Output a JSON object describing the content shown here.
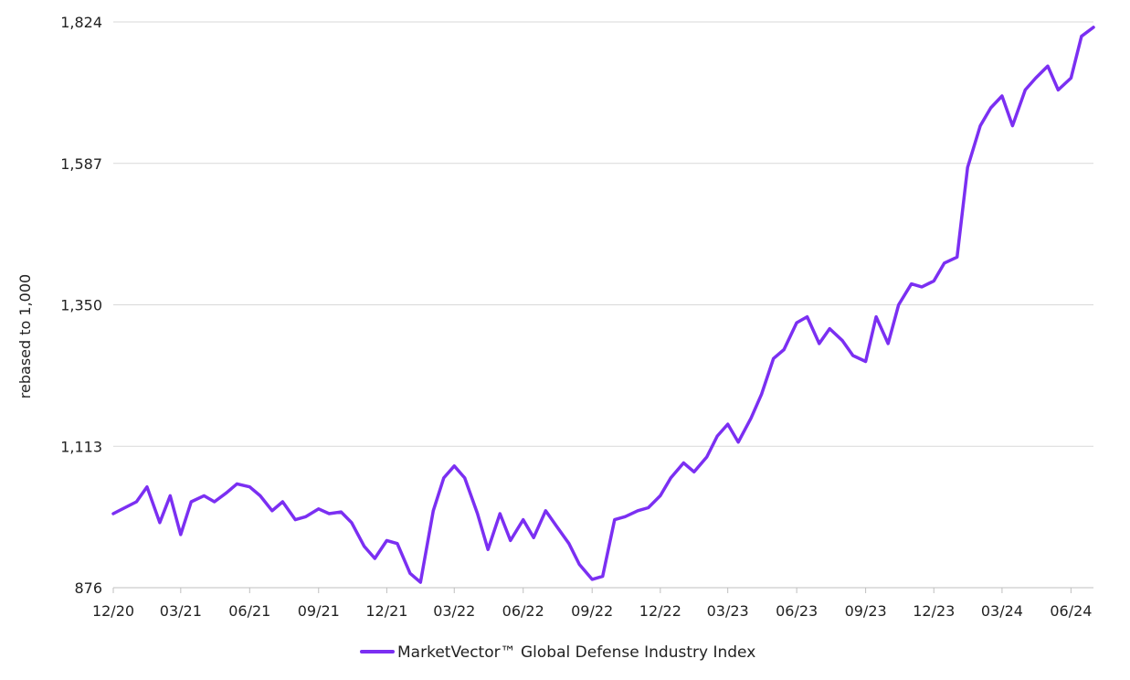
{
  "chart_data": {
    "type": "line",
    "xlabel": "",
    "ylabel": "rebased to 1,000",
    "ylim": [
      876,
      1824
    ],
    "yticks": [
      {
        "value": 876,
        "label": "876"
      },
      {
        "value": 1113,
        "label": "1,113"
      },
      {
        "value": 1350,
        "label": "1,350"
      },
      {
        "value": 1587,
        "label": "1,587"
      },
      {
        "value": 1824,
        "label": "1,824"
      }
    ],
    "x_range": [
      "2020-12",
      "2024-07"
    ],
    "xticks": [
      {
        "value": "2020-12",
        "label": "12/20"
      },
      {
        "value": "2021-03",
        "label": "03/21"
      },
      {
        "value": "2021-06",
        "label": "06/21"
      },
      {
        "value": "2021-09",
        "label": "09/21"
      },
      {
        "value": "2021-12",
        "label": "12/21"
      },
      {
        "value": "2022-03",
        "label": "03/22"
      },
      {
        "value": "2022-06",
        "label": "06/22"
      },
      {
        "value": "2022-09",
        "label": "09/22"
      },
      {
        "value": "2022-12",
        "label": "12/22"
      },
      {
        "value": "2023-03",
        "label": "03/23"
      },
      {
        "value": "2023-06",
        "label": "06/23"
      },
      {
        "value": "2023-09",
        "label": "09/23"
      },
      {
        "value": "2023-12",
        "label": "12/23"
      },
      {
        "value": "2024-03",
        "label": "03/24"
      },
      {
        "value": "2024-06",
        "label": "06/24"
      }
    ],
    "grid": {
      "horizontal": true,
      "vertical": false
    },
    "legend_position": "bottom-center",
    "series": [
      {
        "name": "MarketVector™ Global Defense Industry Index",
        "color": "#7B2FF2",
        "points": [
          [
            "2020-12",
            1000
          ],
          [
            "2021-01",
            1020
          ],
          [
            "2021-01-15",
            1045
          ],
          [
            "2021-02",
            985
          ],
          [
            "2021-02-15",
            1030
          ],
          [
            "2021-03",
            965
          ],
          [
            "2021-03-15",
            1020
          ],
          [
            "2021-04",
            1030
          ],
          [
            "2021-04-15",
            1020
          ],
          [
            "2021-05",
            1035
          ],
          [
            "2021-05-15",
            1050
          ],
          [
            "2021-06",
            1045
          ],
          [
            "2021-06-15",
            1030
          ],
          [
            "2021-07",
            1005
          ],
          [
            "2021-07-15",
            1020
          ],
          [
            "2021-08",
            990
          ],
          [
            "2021-08-15",
            995
          ],
          [
            "2021-09",
            1008
          ],
          [
            "2021-09-15",
            1000
          ],
          [
            "2021-10",
            1003
          ],
          [
            "2021-10-15",
            985
          ],
          [
            "2021-11",
            945
          ],
          [
            "2021-11-15",
            925
          ],
          [
            "2021-12",
            955
          ],
          [
            "2021-12-15",
            950
          ],
          [
            "2022-01",
            900
          ],
          [
            "2022-01-15",
            885
          ],
          [
            "2022-02",
            1005
          ],
          [
            "2022-02-15",
            1060
          ],
          [
            "2022-03",
            1080
          ],
          [
            "2022-03-15",
            1060
          ],
          [
            "2022-04",
            1000
          ],
          [
            "2022-04-15",
            940
          ],
          [
            "2022-05",
            1000
          ],
          [
            "2022-05-15",
            955
          ],
          [
            "2022-06",
            990
          ],
          [
            "2022-06-15",
            960
          ],
          [
            "2022-07",
            1005
          ],
          [
            "2022-07-15",
            980
          ],
          [
            "2022-08",
            950
          ],
          [
            "2022-08-15",
            915
          ],
          [
            "2022-09",
            890
          ],
          [
            "2022-09-15",
            895
          ],
          [
            "2022-10",
            990
          ],
          [
            "2022-10-15",
            995
          ],
          [
            "2022-11",
            1005
          ],
          [
            "2022-11-15",
            1010
          ],
          [
            "2022-12",
            1030
          ],
          [
            "2022-12-15",
            1060
          ],
          [
            "2023-01",
            1085
          ],
          [
            "2023-01-15",
            1070
          ],
          [
            "2023-02",
            1095
          ],
          [
            "2023-02-15",
            1130
          ],
          [
            "2023-03",
            1150
          ],
          [
            "2023-03-15",
            1120
          ],
          [
            "2023-04",
            1160
          ],
          [
            "2023-04-15",
            1200
          ],
          [
            "2023-05",
            1260
          ],
          [
            "2023-05-15",
            1275
          ],
          [
            "2023-06",
            1320
          ],
          [
            "2023-06-15",
            1330
          ],
          [
            "2023-07",
            1285
          ],
          [
            "2023-07-15",
            1310
          ],
          [
            "2023-08",
            1290
          ],
          [
            "2023-08-15",
            1265
          ],
          [
            "2023-09",
            1255
          ],
          [
            "2023-09-15",
            1330
          ],
          [
            "2023-10",
            1285
          ],
          [
            "2023-10-15",
            1350
          ],
          [
            "2023-11",
            1385
          ],
          [
            "2023-11-15",
            1380
          ],
          [
            "2023-12",
            1390
          ],
          [
            "2023-12-15",
            1420
          ],
          [
            "2024-01",
            1430
          ],
          [
            "2024-01-15",
            1580
          ],
          [
            "2024-02",
            1650
          ],
          [
            "2024-02-15",
            1680
          ],
          [
            "2024-03",
            1700
          ],
          [
            "2024-03-15",
            1650
          ],
          [
            "2024-04",
            1710
          ],
          [
            "2024-04-15",
            1730
          ],
          [
            "2024-05",
            1750
          ],
          [
            "2024-05-15",
            1710
          ],
          [
            "2024-06",
            1730
          ],
          [
            "2024-06-15",
            1800
          ],
          [
            "2024-07",
            1815
          ]
        ]
      }
    ]
  }
}
